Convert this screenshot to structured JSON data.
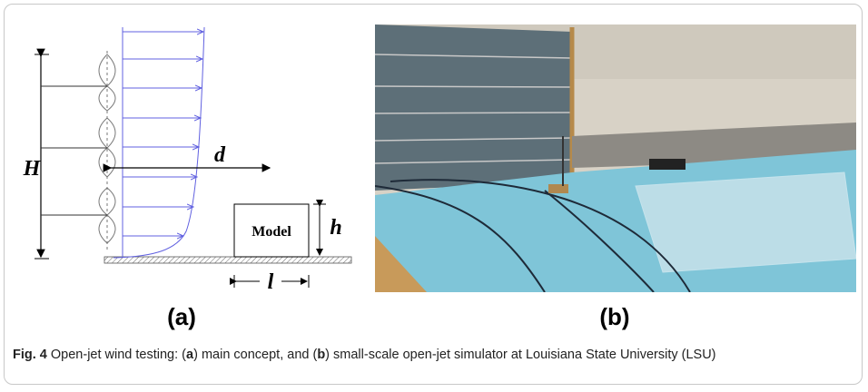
{
  "figure": {
    "panel_a": {
      "labels": {
        "H": "H",
        "d": "d",
        "h": "h",
        "l": "l",
        "model": "Model"
      },
      "tag": "(a)"
    },
    "panel_b": {
      "tag": "(b)"
    },
    "caption": {
      "number": "Fig. 4",
      "parts": [
        " Open-jet wind testing: (",
        "a",
        ") main concept, and (",
        "b",
        ") small-scale open-jet simulator at Louisiana State University (LSU)"
      ]
    }
  }
}
